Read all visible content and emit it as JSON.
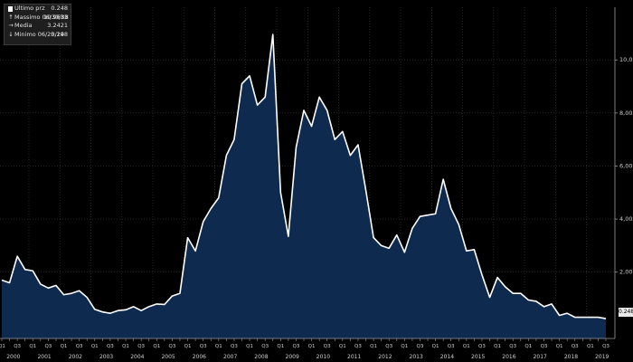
{
  "legend": {
    "items": [
      {
        "label": "Ultimo prz",
        "value": "0.248",
        "icon": "last-price-square-icon"
      },
      {
        "label": "Massimo 06/30/08",
        "value": "10.9633",
        "icon": "high-marker-icon"
      },
      {
        "label": "Media",
        "value": "3.2421",
        "icon": "average-arrow-icon"
      },
      {
        "label": "Minimo 06/25/19",
        "value": "0.248",
        "icon": "low-marker-icon"
      }
    ]
  },
  "last_value_label": "0.248",
  "colors": {
    "background": "#000000",
    "area_fill": "#0f2a4f",
    "line": "#ffffff",
    "grid": "#3b3b3b",
    "axis_text": "#cfcfcf"
  },
  "chart_data": {
    "type": "area",
    "x_start": "2000 Q1",
    "x_frequency": "quarterly",
    "ylim": [
      -0.5,
      10.9633
    ],
    "y_ticks": [
      2.0,
      4.0,
      6.0,
      8.0,
      10.0
    ],
    "y_tick_labels": [
      "2,00",
      "4,00",
      "6,00",
      "8,00",
      "10,00"
    ],
    "x_quarter_labels": [
      "Q1",
      "Q3"
    ],
    "year_labels": [
      "2000",
      "2001",
      "2002",
      "2003",
      "2004",
      "2005",
      "2006",
      "2007",
      "2008",
      "2009",
      "2010",
      "2011",
      "2012",
      "2013",
      "2014",
      "2015",
      "2016",
      "2017",
      "2018",
      "2019"
    ],
    "grid": true,
    "values": [
      1.7,
      1.6,
      2.6,
      2.1,
      2.05,
      1.55,
      1.4,
      1.5,
      1.15,
      1.2,
      1.3,
      1.05,
      0.6,
      0.5,
      0.45,
      0.55,
      0.58,
      0.7,
      0.55,
      0.7,
      0.8,
      0.78,
      1.1,
      1.2,
      3.3,
      2.8,
      3.9,
      4.4,
      4.8,
      6.4,
      7.0,
      9.1,
      9.4,
      8.3,
      8.6,
      10.9633,
      5.0,
      3.35,
      6.7,
      8.1,
      7.5,
      8.6,
      8.1,
      7.0,
      7.3,
      6.4,
      6.8,
      5.1,
      3.3,
      3.0,
      2.9,
      3.4,
      2.75,
      3.65,
      4.1,
      4.15,
      4.2,
      5.5,
      4.4,
      3.8,
      2.8,
      2.85,
      1.9,
      1.05,
      1.8,
      1.45,
      1.2,
      1.2,
      0.95,
      0.9,
      0.7,
      0.8,
      0.37,
      0.45,
      0.3,
      0.3,
      0.3,
      0.3,
      0.248
    ]
  }
}
